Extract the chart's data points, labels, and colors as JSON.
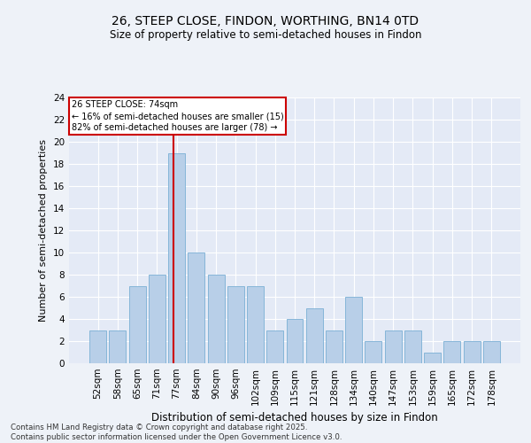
{
  "title1": "26, STEEP CLOSE, FINDON, WORTHING, BN14 0TD",
  "title2": "Size of property relative to semi-detached houses in Findon",
  "xlabel": "Distribution of semi-detached houses by size in Findon",
  "ylabel": "Number of semi-detached properties",
  "categories": [
    "52sqm",
    "58sqm",
    "65sqm",
    "71sqm",
    "77sqm",
    "84sqm",
    "90sqm",
    "96sqm",
    "102sqm",
    "109sqm",
    "115sqm",
    "121sqm",
    "128sqm",
    "134sqm",
    "140sqm",
    "147sqm",
    "153sqm",
    "159sqm",
    "165sqm",
    "172sqm",
    "178sqm"
  ],
  "values": [
    3,
    3,
    7,
    8,
    19,
    10,
    8,
    7,
    7,
    3,
    4,
    5,
    3,
    6,
    2,
    3,
    3,
    1,
    2,
    2,
    2
  ],
  "bar_color": "#b8cfe8",
  "bar_edge_color": "#7aafd4",
  "vline_x": 3.85,
  "vline_color": "#cc0000",
  "annotation_title": "26 STEEP CLOSE: 74sqm",
  "annotation_line1": "← 16% of semi-detached houses are smaller (15)",
  "annotation_line2": "82% of semi-detached houses are larger (78) →",
  "annotation_box_color": "#cc0000",
  "ylim": [
    0,
    24
  ],
  "yticks": [
    0,
    2,
    4,
    6,
    8,
    10,
    12,
    14,
    16,
    18,
    20,
    22,
    24
  ],
  "footer1": "Contains HM Land Registry data © Crown copyright and database right 2025.",
  "footer2": "Contains public sector information licensed under the Open Government Licence v3.0.",
  "bg_color": "#eef2f8",
  "plot_bg_color": "#e4eaf6"
}
